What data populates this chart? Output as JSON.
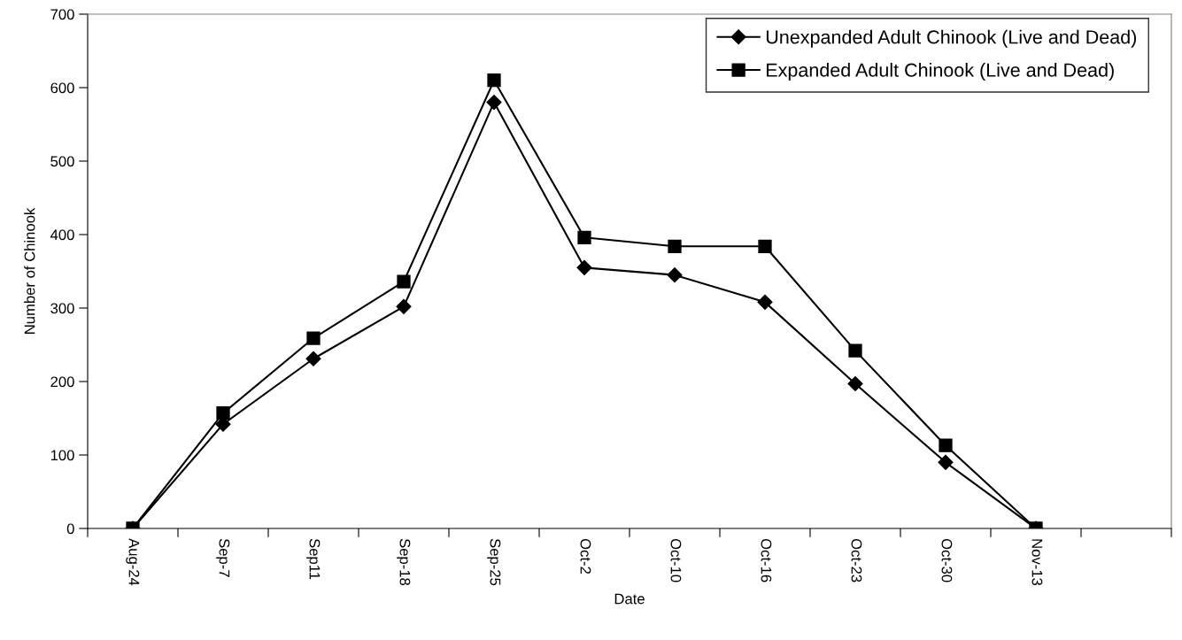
{
  "chart_data": {
    "type": "line",
    "xlabel": "Date",
    "ylabel": "Number of Chinook",
    "categories": [
      "Aug-24",
      "Sep-7",
      "Sep11",
      "Sep-18",
      "Sep-25",
      "Oct-2",
      "Oct-10",
      "Oct-16",
      "Oct-23",
      "Oct-30",
      "Nov-13",
      null
    ],
    "series": [
      {
        "name": "Unexpanded Adult Chinook (Live and Dead)",
        "color": "#000000",
        "marker": "diamond",
        "values": [
          0,
          142,
          231,
          302,
          580,
          355,
          345,
          308,
          197,
          90,
          0,
          null
        ]
      },
      {
        "name": "Expanded Adult Chinook (Live and Dead)",
        "color": "#000000",
        "marker": "square",
        "values": [
          0,
          157,
          259,
          336,
          610,
          396,
          384,
          384,
          242,
          113,
          0,
          null
        ]
      }
    ],
    "ylim": [
      0,
      700
    ],
    "yticks": [
      0,
      100,
      200,
      300,
      400,
      500,
      600,
      700
    ],
    "grid": false,
    "legend": "top right",
    "line_style": "solid"
  }
}
